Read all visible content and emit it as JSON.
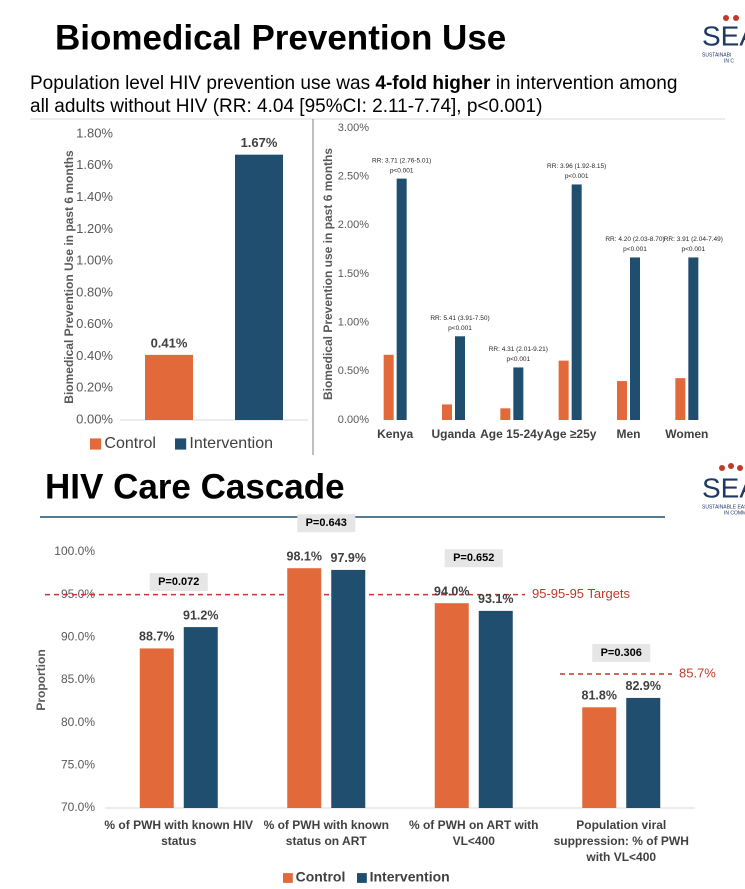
{
  "slide": {
    "title": "Biomedical Prevention Use",
    "subtitle": [
      [
        "Population level HIV prevention use was ",
        "4-fold higher",
        " in intervention among"
      ],
      [
        "all adults without HIV (RR: 4.04 [95%CI: 2.11-7.74], p<0.001)"
      ]
    ],
    "section_title": "HIV Care Cascade",
    "logos": [
      {
        "text": "SEA",
        "lines": [
          "SUSTAINABI",
          "IN C"
        ]
      },
      {
        "text": "SEA",
        "lines": [
          "SUSTAINABLE EAS",
          "IN COMMU"
        ]
      }
    ]
  },
  "chart_data": [
    {
      "type": "bar",
      "categories": [
        null
      ],
      "series": [
        {
          "name": "Control",
          "color": "#E2693A",
          "values": [
            0.41
          ],
          "value_labels": [
            "0.41%"
          ]
        },
        {
          "name": "Intervention",
          "color": "#1F4E6E",
          "values": [
            1.67
          ],
          "value_labels": [
            "1.67%"
          ]
        }
      ],
      "ylabel": "Biomedical Prevention Use in past 6 months",
      "ylim": [
        0,
        1.8
      ],
      "yticks": [
        {
          "value": 0,
          "label": "0.00%"
        },
        {
          "value": 0.2,
          "label": "0.20%"
        },
        {
          "value": 0.4,
          "label": "0.40%"
        },
        {
          "value": 0.6,
          "label": "0.60%"
        },
        {
          "value": 0.8,
          "label": "0.80%"
        },
        {
          "value": 1,
          "label": "1.00%"
        },
        {
          "value": 1.2,
          "label": "1.20%"
        },
        {
          "value": 1.4,
          "label": "1.40%"
        },
        {
          "value": 1.6,
          "label": "1.60%"
        },
        {
          "value": 1.8,
          "label": "1.80%"
        }
      ],
      "legend": "bottom",
      "grid": false
    },
    {
      "type": "bar",
      "categories": [
        "Kenya",
        "Uganda",
        "Age 15-24y",
        "Age ≥25y",
        "Men",
        "Women"
      ],
      "series": [
        {
          "color": "#E2693A",
          "values": [
            0.67,
            0.16,
            0.12,
            0.61,
            0.4,
            0.43
          ]
        },
        {
          "color": "#1F4E6E",
          "values": [
            2.48,
            0.86,
            0.54,
            2.42,
            1.67,
            1.67
          ]
        }
      ],
      "annotations": [
        {
          "lines": [
            "RR: 3.71 (2.76-5.01)",
            "p<0.001"
          ]
        },
        {
          "lines": [
            "RR: 5.41 (3.91-7.50)",
            "p<0.001"
          ]
        },
        {
          "lines": [
            "RR: 4.31 (2.01-9.21)",
            "p<0.001"
          ]
        },
        {
          "lines": [
            "RR: 3.96 (1.92-8.15)",
            "p<0.001"
          ]
        },
        {
          "lines": [
            "RR: 4.20 (2.03-8.70)",
            "p<0.001"
          ]
        },
        {
          "lines": [
            "RR: 3.91 (2.04-7.49)",
            "p<0.001"
          ]
        }
      ],
      "ylabel": "Biomedical Prevention use in past 6 months",
      "ylim": [
        0,
        3
      ],
      "yticks": [
        {
          "value": 0,
          "label": "0.00%"
        },
        {
          "value": 0.5,
          "label": "0.50%"
        },
        {
          "value": 1,
          "label": "1.00%"
        },
        {
          "value": 1.5,
          "label": "1.50%"
        },
        {
          "value": 2,
          "label": "2.00%"
        },
        {
          "value": 2.5,
          "label": "2.50%"
        },
        {
          "value": 3,
          "label": "3.00%"
        }
      ],
      "grid": false
    },
    {
      "type": "bar",
      "categories": [
        [
          "% of PWH with known HIV",
          "status"
        ],
        [
          "% of PWH with known",
          "status on ART"
        ],
        [
          "% of PWH on ART with",
          "VL<400"
        ],
        [
          "Population viral",
          "suppression: % of PWH",
          "with VL<400"
        ]
      ],
      "series": [
        {
          "name": "Control",
          "color": "#E2693A",
          "values": [
            88.7,
            98.1,
            94.0,
            81.8
          ],
          "value_labels": [
            "88.7%",
            "98.1%",
            "94.0%",
            "81.8%"
          ]
        },
        {
          "name": "Intervention",
          "color": "#1F4E6E",
          "values": [
            91.2,
            97.9,
            93.1,
            82.9
          ],
          "value_labels": [
            "91.2%",
            "97.9%",
            "93.1%",
            "82.9%"
          ]
        }
      ],
      "p_values": [
        "P=0.072",
        "P=0.643",
        "P=0.652",
        "P=0.306"
      ],
      "reference_lines": [
        {
          "value": 95,
          "label": "95-95-95 Targets"
        },
        {
          "value": 85.7,
          "label": "85.7%"
        }
      ],
      "ylabel": "Proportion",
      "ylim": [
        70,
        100
      ],
      "yticks": [
        {
          "value": 70,
          "label": "70.0%"
        },
        {
          "value": 75,
          "label": "75.0%"
        },
        {
          "value": 80,
          "label": "80.0%"
        },
        {
          "value": 85,
          "label": "85.0%"
        },
        {
          "value": 90,
          "label": "90.0%"
        },
        {
          "value": 95,
          "label": "95.0%"
        },
        {
          "value": 100,
          "label": "100.0%"
        }
      ],
      "legend": "bottom",
      "grid": false
    }
  ]
}
